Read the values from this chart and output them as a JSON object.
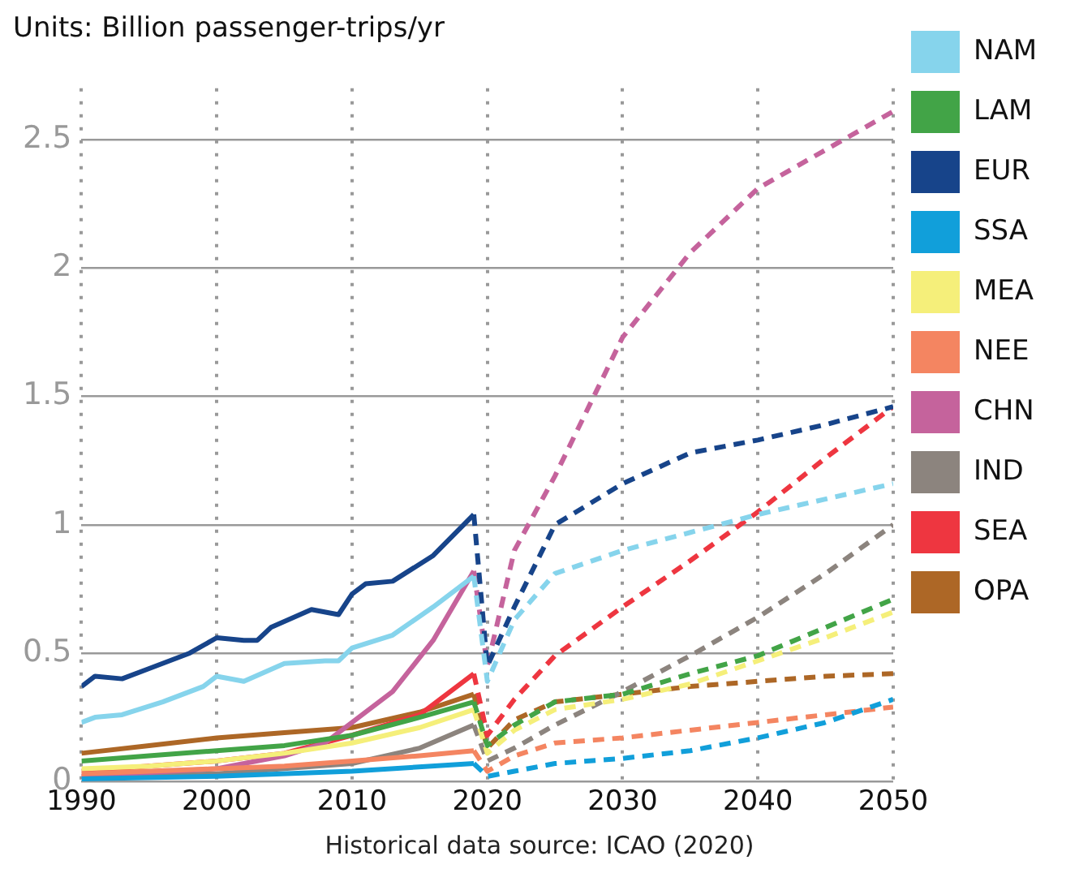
{
  "chart_data": {
    "type": "line",
    "title": "Units: Billion passenger-trips/yr",
    "annotations": [
      "Historical data source: ICAO (2020)"
    ],
    "xlim": [
      1990,
      2050
    ],
    "xticks": [
      1990,
      2000,
      2010,
      2020,
      2030,
      2040,
      2050
    ],
    "ylim": [
      0,
      2.7
    ],
    "yticks": [
      0,
      0.5,
      1,
      1.5,
      2,
      2.5
    ],
    "grid": true,
    "legend": "right",
    "marker": "none",
    "series": [
      {
        "name": "NAM",
        "color": "#86d4ec",
        "line_style": "solid",
        "x": [
          1990,
          1991,
          1993,
          1996,
          1999,
          2000,
          2002,
          2005,
          2008,
          2009,
          2010,
          2013,
          2016,
          2019
        ],
        "values": [
          0.23,
          0.25,
          0.26,
          0.31,
          0.37,
          0.41,
          0.39,
          0.46,
          0.47,
          0.47,
          0.52,
          0.57,
          0.68,
          0.8
        ]
      },
      {
        "name": "LAM",
        "color": "#42a447",
        "line_style": "solid",
        "x": [
          1990,
          1995,
          2000,
          2005,
          2010,
          2015,
          2019
        ],
        "values": [
          0.08,
          0.1,
          0.12,
          0.14,
          0.18,
          0.25,
          0.31
        ]
      },
      {
        "name": "EUR",
        "color": "#17448a",
        "line_style": "solid",
        "x": [
          1990,
          1991,
          1993,
          1995,
          1998,
          2000,
          2002,
          2003,
          2004,
          2007,
          2009,
          2010,
          2011,
          2013,
          2016,
          2019
        ],
        "values": [
          0.37,
          0.41,
          0.4,
          0.44,
          0.5,
          0.56,
          0.55,
          0.55,
          0.6,
          0.67,
          0.65,
          0.73,
          0.77,
          0.78,
          0.88,
          1.04
        ]
      },
      {
        "name": "SSA",
        "color": "#119fda",
        "line_style": "solid",
        "x": [
          1990,
          2000,
          2010,
          2019
        ],
        "values": [
          0.01,
          0.02,
          0.04,
          0.07
        ]
      },
      {
        "name": "MEA",
        "color": "#f5ef7a",
        "line_style": "solid",
        "x": [
          1990,
          1995,
          2000,
          2005,
          2010,
          2015,
          2019
        ],
        "values": [
          0.05,
          0.06,
          0.08,
          0.11,
          0.15,
          0.21,
          0.28
        ]
      },
      {
        "name": "NEE",
        "color": "#f48561",
        "line_style": "solid",
        "x": [
          1990,
          2000,
          2005,
          2010,
          2015,
          2019
        ],
        "values": [
          0.03,
          0.05,
          0.06,
          0.08,
          0.1,
          0.12
        ]
      },
      {
        "name": "CHN",
        "color": "#c5639c",
        "line_style": "solid",
        "x": [
          1990,
          2000,
          2005,
          2008,
          2010,
          2013,
          2016,
          2019
        ],
        "values": [
          0.02,
          0.05,
          0.1,
          0.15,
          0.23,
          0.35,
          0.55,
          0.82
        ]
      },
      {
        "name": "IND",
        "color": "#8c847e",
        "line_style": "solid",
        "x": [
          1990,
          2000,
          2005,
          2010,
          2015,
          2019
        ],
        "values": [
          0.02,
          0.03,
          0.05,
          0.07,
          0.13,
          0.22
        ]
      },
      {
        "name": "SEA",
        "color": "#ee3640",
        "line_style": "solid",
        "x": [
          1990,
          2000,
          2005,
          2010,
          2015,
          2019
        ],
        "values": [
          0.04,
          0.08,
          0.11,
          0.18,
          0.26,
          0.42
        ]
      },
      {
        "name": "OPA",
        "color": "#ad6726",
        "line_style": "solid",
        "x": [
          1990,
          1995,
          2000,
          2005,
          2010,
          2015,
          2019
        ],
        "values": [
          0.11,
          0.14,
          0.17,
          0.19,
          0.21,
          0.27,
          0.34
        ]
      },
      {
        "color": "#86d4ec",
        "line_style": "dashed",
        "x": [
          2019,
          2020,
          2022,
          2025,
          2030,
          2035,
          2040,
          2045,
          2050
        ],
        "values": [
          0.8,
          0.39,
          0.63,
          0.81,
          0.9,
          0.97,
          1.04,
          1.1,
          1.16
        ]
      },
      {
        "color": "#42a447",
        "line_style": "dashed",
        "x": [
          2019,
          2020,
          2022,
          2025,
          2030,
          2035,
          2040,
          2045,
          2050
        ],
        "values": [
          0.31,
          0.14,
          0.22,
          0.31,
          0.34,
          0.42,
          0.49,
          0.6,
          0.71
        ]
      },
      {
        "color": "#17448a",
        "line_style": "dashed",
        "x": [
          2019,
          2020,
          2022,
          2025,
          2030,
          2035,
          2040,
          2045,
          2050
        ],
        "values": [
          1.04,
          0.45,
          0.68,
          1.0,
          1.16,
          1.28,
          1.33,
          1.39,
          1.46
        ]
      },
      {
        "color": "#119fda",
        "line_style": "dashed",
        "x": [
          2019,
          2020,
          2022,
          2025,
          2030,
          2035,
          2040,
          2045,
          2050
        ],
        "values": [
          0.07,
          0.02,
          0.04,
          0.07,
          0.09,
          0.12,
          0.17,
          0.23,
          0.32
        ]
      },
      {
        "color": "#f5ef7a",
        "line_style": "dashed",
        "x": [
          2019,
          2020,
          2022,
          2025,
          2030,
          2035,
          2040,
          2045,
          2050
        ],
        "values": [
          0.28,
          0.11,
          0.2,
          0.28,
          0.32,
          0.38,
          0.47,
          0.56,
          0.66
        ]
      },
      {
        "color": "#f48561",
        "line_style": "dashed",
        "x": [
          2019,
          2020,
          2022,
          2025,
          2030,
          2035,
          2040,
          2045,
          2050
        ],
        "values": [
          0.12,
          0.04,
          0.1,
          0.15,
          0.17,
          0.2,
          0.23,
          0.26,
          0.29
        ]
      },
      {
        "color": "#c5639c",
        "line_style": "dashed",
        "x": [
          2019,
          2020,
          2022,
          2025,
          2030,
          2035,
          2040,
          2045,
          2050
        ],
        "values": [
          0.82,
          0.45,
          0.9,
          1.19,
          1.73,
          2.06,
          2.31,
          2.46,
          2.61
        ]
      },
      {
        "color": "#8c847e",
        "line_style": "dashed",
        "x": [
          2019,
          2020,
          2022,
          2025,
          2030,
          2035,
          2040,
          2045,
          2050
        ],
        "values": [
          0.22,
          0.08,
          0.13,
          0.22,
          0.35,
          0.49,
          0.64,
          0.81,
          1.0
        ]
      },
      {
        "color": "#ee3640",
        "line_style": "dashed",
        "x": [
          2019,
          2020,
          2022,
          2025,
          2030,
          2035,
          2040,
          2045,
          2050
        ],
        "values": [
          0.42,
          0.18,
          0.32,
          0.49,
          0.68,
          0.86,
          1.05,
          1.26,
          1.46
        ]
      },
      {
        "color": "#ad6726",
        "line_style": "dashed",
        "x": [
          2019,
          2020,
          2022,
          2025,
          2030,
          2035,
          2040,
          2045,
          2050
        ],
        "values": [
          0.34,
          0.13,
          0.24,
          0.31,
          0.34,
          0.37,
          0.39,
          0.41,
          0.42
        ]
      }
    ]
  }
}
